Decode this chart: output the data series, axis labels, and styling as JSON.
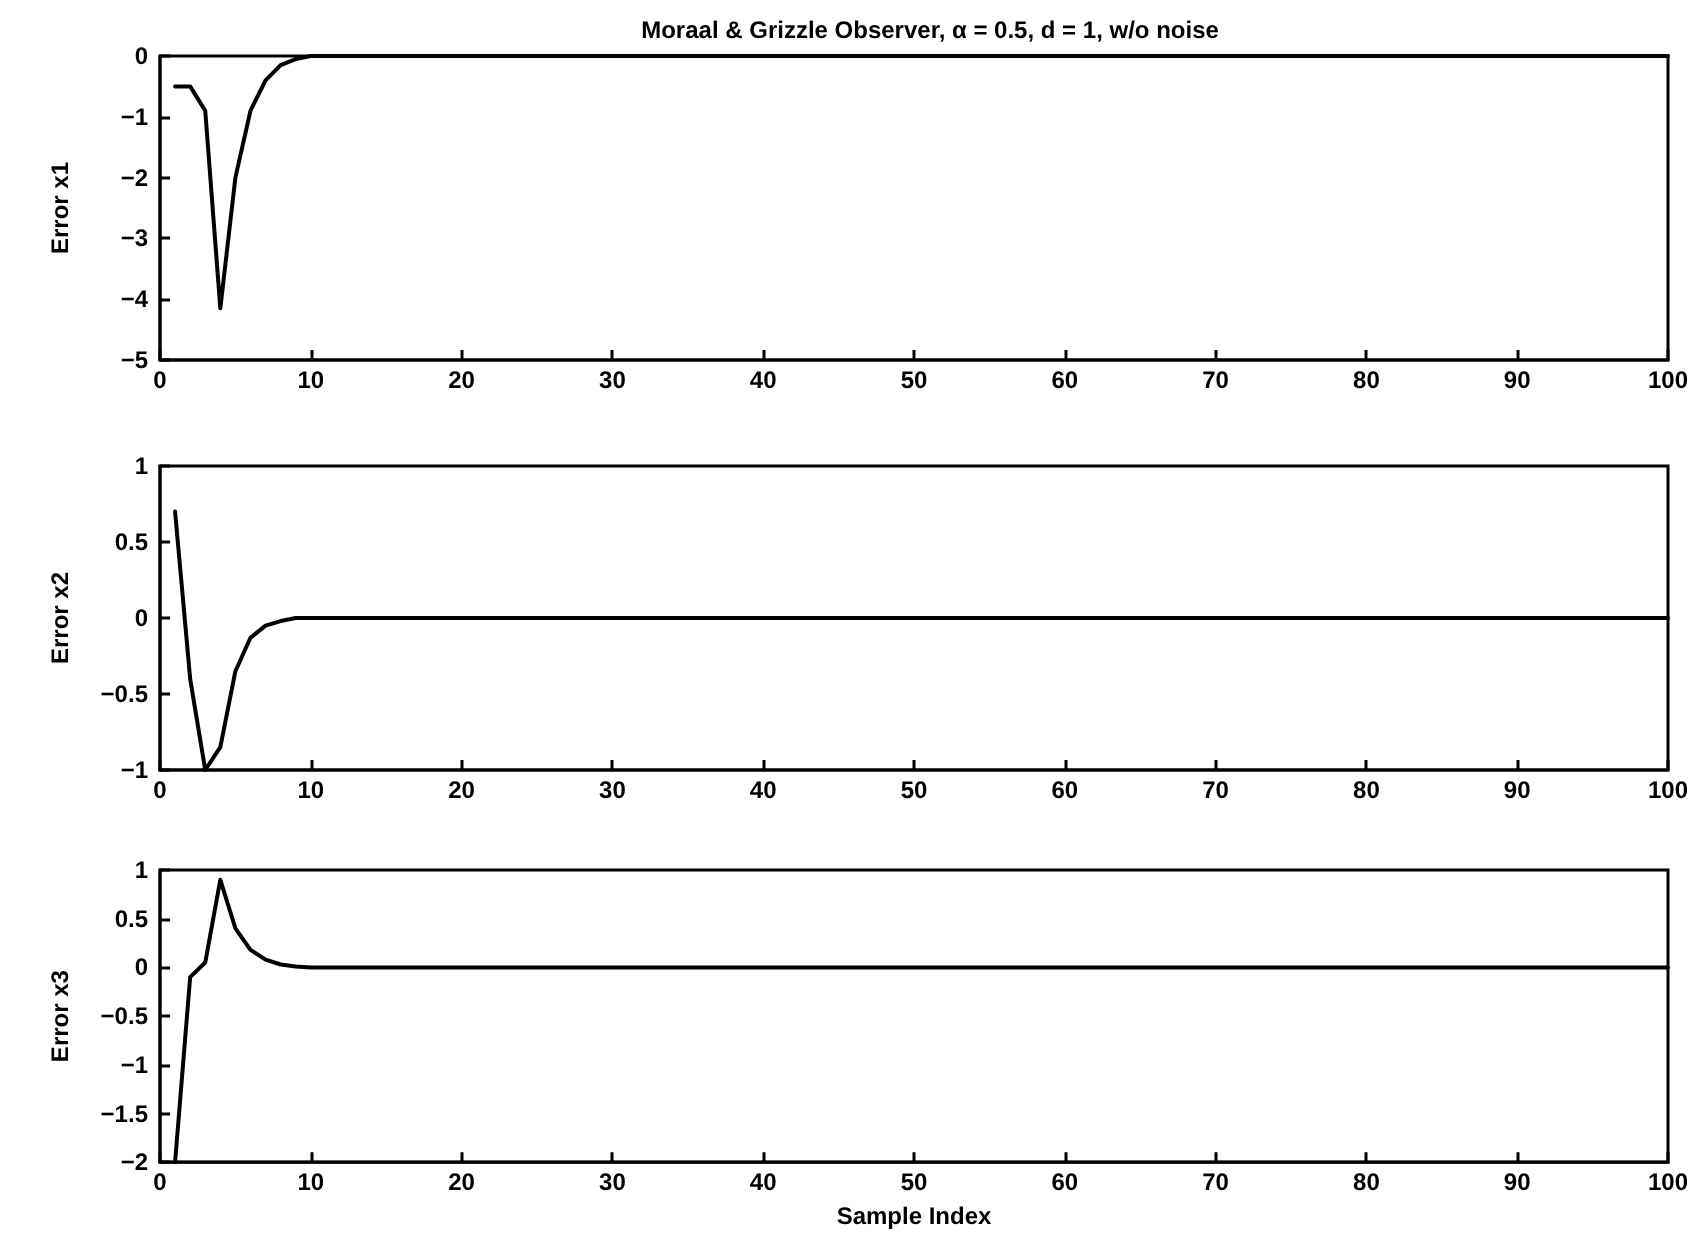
{
  "chart_data": [
    {
      "type": "line",
      "title": "Moraal & Grizzle Observer, α = 0.5, d = 1, w/o noise",
      "ylabel": "Error x1",
      "x": [
        1,
        2,
        3,
        4,
        5,
        6,
        7,
        8,
        9,
        10,
        11,
        12,
        100
      ],
      "series": [
        {
          "color": "#000000",
          "values": [
            -0.5,
            -0.5,
            -0.9,
            -4.15,
            -2.0,
            -0.9,
            -0.4,
            -0.15,
            -0.05,
            0,
            0,
            0,
            0
          ]
        }
      ],
      "xlim": [
        0,
        100
      ],
      "xticks": [
        0,
        10,
        20,
        30,
        40,
        50,
        60,
        70,
        80,
        90,
        100
      ],
      "ylim": [
        -5,
        0
      ],
      "yticks": [
        -5,
        -4,
        -3,
        -2,
        -1,
        0
      ],
      "grid": false,
      "marker": "none",
      "line_style": "solid"
    },
    {
      "type": "line",
      "ylabel": "Error x2",
      "x": [
        1,
        2,
        3,
        4,
        5,
        6,
        7,
        8,
        9,
        10,
        11,
        12,
        100
      ],
      "series": [
        {
          "color": "#000000",
          "values": [
            0.7,
            -0.4,
            -1.0,
            -0.85,
            -0.35,
            -0.13,
            -0.05,
            -0.02,
            0,
            0,
            0,
            0,
            0
          ]
        }
      ],
      "xlim": [
        0,
        100
      ],
      "xticks": [
        0,
        10,
        20,
        30,
        40,
        50,
        60,
        70,
        80,
        90,
        100
      ],
      "ylim": [
        -1,
        1
      ],
      "yticks": [
        -1,
        -0.5,
        0,
        0.5,
        1
      ],
      "grid": false,
      "marker": "none",
      "line_style": "solid"
    },
    {
      "type": "line",
      "ylabel": "Error x3",
      "xlabel": "Sample Index",
      "x": [
        1,
        2,
        3,
        4,
        5,
        6,
        7,
        8,
        9,
        10,
        11,
        12,
        100
      ],
      "series": [
        {
          "color": "#000000",
          "values": [
            -2.0,
            -0.1,
            0.05,
            0.9,
            0.4,
            0.18,
            0.08,
            0.03,
            0.01,
            0,
            0,
            0,
            0
          ]
        }
      ],
      "xlim": [
        0,
        100
      ],
      "xticks": [
        0,
        10,
        20,
        30,
        40,
        50,
        60,
        70,
        80,
        90,
        100
      ],
      "ylim": [
        -2,
        1
      ],
      "yticks": [
        -2,
        -1.5,
        -1,
        -0.5,
        0,
        0.5,
        1
      ],
      "grid": false,
      "marker": "none",
      "line_style": "solid"
    }
  ]
}
